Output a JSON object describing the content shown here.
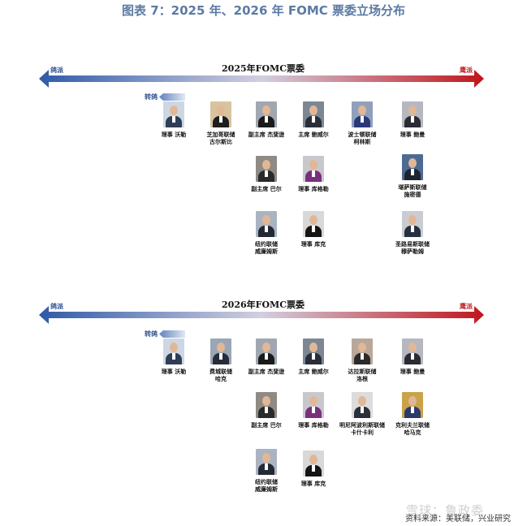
{
  "title": "图表 7：2025 年、2026 年 FOMC 票委立场分布",
  "colors": {
    "dove": "#2e4f8f",
    "hawk": "#c0282a",
    "title": "#5b7ba3"
  },
  "sections": [
    {
      "axis_title": "2025年FOMC票委",
      "dove_label": "鸽派",
      "hawk_label": "鹰派",
      "turn_label": "转鸽",
      "members": [
        {
          "caption": [
            "理事 沃勒"
          ],
          "bg": "#cdd7e4",
          "suit": "#2f3e55"
        },
        {
          "caption": [
            "芝加哥联储",
            "古尔斯比"
          ],
          "bg": "#d7c49f",
          "suit": "#1e1e1e"
        },
        {
          "caption": [
            "副主席 杰斐逊"
          ],
          "bg": "#a0a7b1",
          "suit": "#1a1a1a"
        },
        {
          "caption": [
            "主席 鲍威尔"
          ],
          "bg": "#7d8794",
          "suit": "#2a2e38"
        },
        {
          "caption": [
            "波士顿联储",
            "柯林斯"
          ],
          "bg": "#8fa0bb",
          "suit": "#2a3a78"
        },
        {
          "caption": [
            "理事 鲍曼"
          ],
          "bg": "#b5b8c0",
          "suit": "#2b2b33"
        },
        {
          "caption": [
            "副主席 巴尔"
          ],
          "bg": "#8f8a84",
          "suit": "#2a2a2a"
        },
        {
          "caption": [
            "理事 库格勒"
          ],
          "bg": "#c8c8cc",
          "suit": "#7a2f7d"
        },
        {
          "caption": [
            "堪萨斯联储",
            "施密德"
          ],
          "bg": "#4d6a92",
          "suit": "#1e2530"
        },
        {
          "caption": [
            "纽约联储",
            "威廉姆斯"
          ],
          "bg": "#aab4c1",
          "suit": "#232a36"
        },
        {
          "caption": [
            "理事 库克"
          ],
          "bg": "#d8d8d8",
          "suit": "#151515"
        },
        {
          "caption": [
            "圣路易斯联储",
            "穆萨勒姆"
          ],
          "bg": "#c9cdd3",
          "suit": "#26303e"
        }
      ]
    },
    {
      "axis_title": "2026年FOMC票委",
      "dove_label": "鸽派",
      "hawk_label": "鹰派",
      "turn_label": "转鸽",
      "members": [
        {
          "caption": [
            "理事 沃勒"
          ],
          "bg": "#cdd7e4",
          "suit": "#2f3e55"
        },
        {
          "caption": [
            "费城联储",
            "哈克"
          ],
          "bg": "#9aa6b4",
          "suit": "#262d3a"
        },
        {
          "caption": [
            "副主席 杰斐逊"
          ],
          "bg": "#a0a7b1",
          "suit": "#1a1a1a"
        },
        {
          "caption": [
            "主席 鲍威尔"
          ],
          "bg": "#7d8794",
          "suit": "#2a2e38"
        },
        {
          "caption": [
            "达拉斯联储",
            "洛根"
          ],
          "bg": "#b9a79a",
          "suit": "#2b2b2b"
        },
        {
          "caption": [
            "理事 鲍曼"
          ],
          "bg": "#b5b8c0",
          "suit": "#2b2b33"
        },
        {
          "caption": [
            "副主席 巴尔"
          ],
          "bg": "#8f8a84",
          "suit": "#2a2a2a"
        },
        {
          "caption": [
            "理事 库格勒"
          ],
          "bg": "#c8c8cc",
          "suit": "#7a2f7d"
        },
        {
          "caption": [
            "明尼阿波利斯联储",
            "卡什卡利"
          ],
          "bg": "#dcdcdc",
          "suit": "#2a2f3a"
        },
        {
          "caption": [
            "克利夫兰联储",
            "哈马克"
          ],
          "bg": "#c9a24a",
          "suit": "#2a3b6a"
        },
        {
          "caption": [
            "纽约联储",
            "威廉姆斯"
          ],
          "bg": "#aab4c1",
          "suit": "#232a36"
        },
        {
          "caption": [
            "理事 库克"
          ],
          "bg": "#d8d8d8",
          "suit": "#151515"
        }
      ]
    }
  ],
  "footer": "资料来源：美联储，兴业研究",
  "watermark": "雪球：鲁政委"
}
